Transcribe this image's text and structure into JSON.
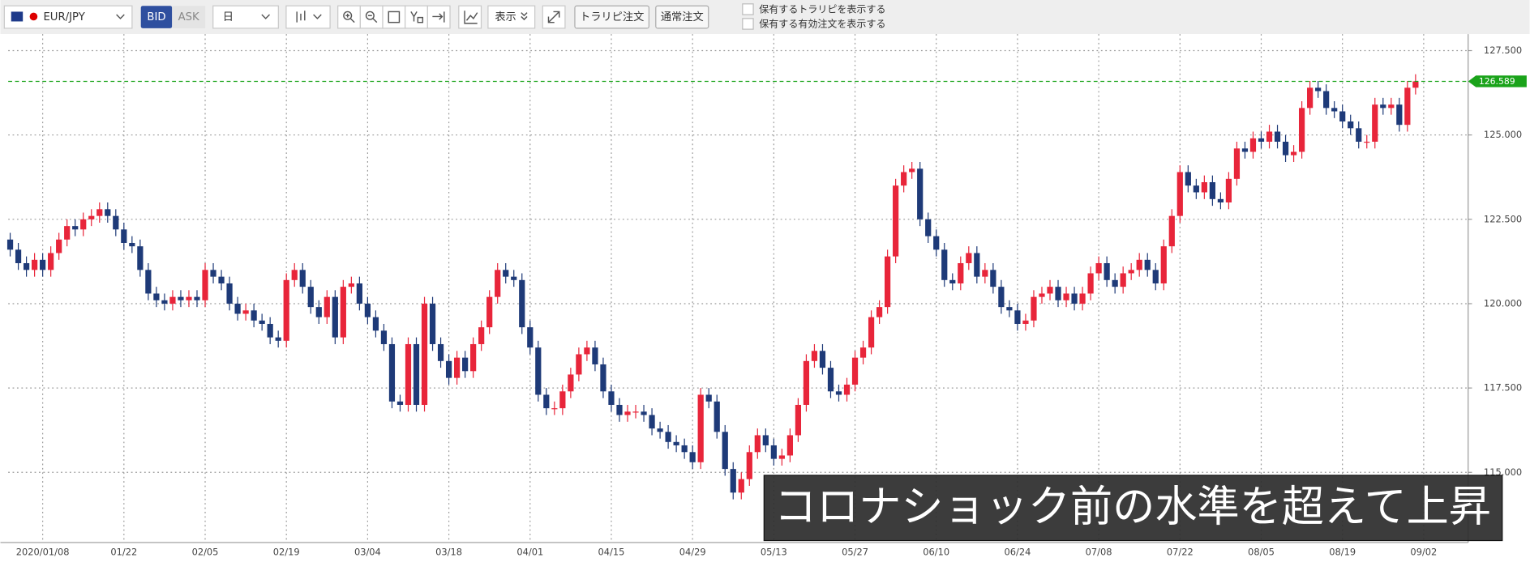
{
  "toolbar": {
    "symbol": "EUR/JPY",
    "bid": "BID",
    "ask": "ASK",
    "period": "日",
    "display": "表示",
    "buttons": [
      "トラリピ注文",
      "通常注文"
    ],
    "checkboxes": [
      "保有するトラリピを表示する",
      "保有する有効注文を表示する"
    ]
  },
  "annotation": "コロナショック前の水準を超えて上昇",
  "chart_data": {
    "type": "candlestick",
    "up_color": "#e8253a",
    "down_color": "#1e3a78",
    "last_price_color": "#1aa31a",
    "grid": true,
    "categories": [
      null,
      null,
      null,
      null,
      "2020/01/08",
      null,
      null,
      null,
      null,
      null,
      null,
      null,
      null,
      null,
      "01/22",
      null,
      null,
      null,
      null,
      null,
      null,
      null,
      null,
      null,
      "02/05",
      null,
      null,
      null,
      null,
      null,
      null,
      null,
      null,
      null,
      "02/19",
      null,
      null,
      null,
      null,
      null,
      null,
      null,
      null,
      null,
      "03/04",
      null,
      null,
      null,
      null,
      null,
      null,
      null,
      null,
      null,
      "03/18",
      null,
      null,
      null,
      null,
      null,
      null,
      null,
      null,
      null,
      "04/01",
      null,
      null,
      null,
      null,
      null,
      null,
      null,
      null,
      null,
      "04/15",
      null,
      null,
      null,
      null,
      null,
      null,
      null,
      null,
      null,
      "04/29",
      null,
      null,
      null,
      null,
      null,
      null,
      null,
      null,
      null,
      "05/13",
      null,
      null,
      null,
      null,
      null,
      null,
      null,
      null,
      null,
      "05/27",
      null,
      null,
      null,
      null,
      null,
      null,
      null,
      null,
      null,
      "06/10",
      null,
      null,
      null,
      null,
      null,
      null,
      null,
      null,
      null,
      "06/24",
      null,
      null,
      null,
      null,
      null,
      null,
      null,
      null,
      null,
      "07/08",
      null,
      null,
      null,
      null,
      null,
      null,
      null,
      null,
      null,
      "07/22",
      null,
      null,
      null,
      null,
      null,
      null,
      null,
      null,
      null,
      "08/05",
      null,
      null,
      null,
      null,
      null,
      null,
      null,
      null,
      null,
      "08/19",
      null,
      null,
      null,
      null,
      null,
      null,
      null,
      null,
      null,
      "09/02"
    ],
    "open": [
      121.9,
      121.6,
      121.2,
      121.0,
      121.3,
      121.0,
      121.5,
      121.9,
      122.3,
      122.2,
      122.5,
      122.6,
      122.8,
      122.6,
      122.2,
      121.8,
      121.7,
      121.0,
      120.3,
      120.1,
      120.0,
      120.2,
      120.1,
      120.2,
      120.1,
      121.0,
      120.8,
      120.6,
      120.0,
      119.7,
      119.8,
      119.5,
      119.4,
      119.0,
      118.9,
      120.7,
      121.0,
      120.5,
      119.9,
      119.6,
      120.2,
      119.0,
      120.5,
      120.6,
      120.0,
      119.6,
      119.2,
      118.8,
      117.1,
      117.0,
      118.8,
      117.0,
      120.0,
      118.8,
      118.3,
      117.8,
      118.4,
      118.0,
      118.8,
      119.3,
      120.2,
      121.0,
      120.8,
      120.7,
      119.3,
      118.7,
      117.3,
      116.9,
      116.9,
      117.4,
      117.9,
      118.5,
      118.7,
      118.2,
      117.4,
      117.0,
      116.7,
      116.8,
      116.8,
      116.7,
      116.3,
      116.2,
      115.9,
      115.8,
      115.6,
      115.3,
      117.3,
      117.1,
      116.2,
      115.1,
      114.4,
      114.8,
      115.6,
      116.1,
      115.8,
      115.4,
      115.5,
      116.1,
      117.0,
      118.3,
      118.6,
      118.1,
      117.4,
      117.3,
      117.6,
      118.4,
      118.7,
      119.6,
      119.9,
      121.4,
      123.5,
      123.9,
      124.0,
      122.5,
      122.0,
      121.6,
      120.7,
      120.6,
      121.2,
      121.5,
      120.8,
      121.0,
      120.5,
      119.9,
      119.8,
      119.4,
      119.5,
      120.2,
      120.3,
      120.5,
      120.1,
      120.3,
      120.0,
      120.3,
      120.9,
      121.2,
      120.7,
      120.5,
      120.9,
      121.0,
      121.3,
      121.0,
      120.6,
      121.7,
      122.6,
      123.9,
      123.5,
      123.3,
      123.6,
      123.1,
      123.0,
      123.7,
      124.6,
      124.5,
      124.9,
      124.8,
      125.1,
      124.8,
      124.4,
      124.5,
      125.8,
      126.4,
      126.3,
      125.8,
      125.7,
      125.4,
      125.2,
      124.8,
      124.8,
      125.9,
      125.8,
      125.9,
      125.3,
      126.4,
      null
    ],
    "high": [
      122.1,
      121.8,
      121.4,
      121.5,
      121.5,
      121.7,
      122.1,
      122.5,
      122.5,
      122.7,
      122.8,
      123.0,
      123.0,
      122.8,
      122.4,
      122.0,
      121.9,
      121.2,
      120.5,
      120.3,
      120.4,
      120.4,
      120.4,
      120.4,
      121.2,
      121.2,
      121.0,
      120.8,
      120.2,
      120.0,
      120.0,
      119.7,
      119.6,
      119.2,
      120.9,
      121.2,
      121.2,
      120.7,
      120.1,
      120.4,
      120.4,
      120.7,
      120.8,
      120.8,
      120.2,
      119.8,
      119.4,
      119.0,
      117.3,
      119.0,
      119.0,
      120.2,
      120.2,
      119.0,
      118.5,
      118.6,
      118.6,
      119.0,
      119.5,
      120.4,
      121.2,
      121.2,
      121.0,
      120.9,
      119.5,
      118.9,
      117.5,
      117.1,
      117.6,
      118.1,
      118.7,
      118.9,
      118.9,
      118.4,
      117.6,
      117.2,
      117.0,
      117.0,
      117.0,
      116.9,
      116.5,
      116.4,
      116.1,
      116.0,
      115.8,
      117.5,
      117.5,
      117.3,
      116.4,
      115.3,
      115.0,
      115.8,
      116.3,
      116.3,
      116.0,
      115.7,
      116.3,
      117.2,
      118.5,
      118.8,
      118.8,
      118.3,
      117.6,
      117.8,
      118.6,
      118.9,
      119.8,
      120.1,
      121.6,
      123.7,
      124.1,
      124.2,
      124.2,
      122.7,
      122.2,
      121.8,
      120.9,
      121.4,
      121.7,
      121.7,
      121.2,
      121.2,
      120.7,
      120.1,
      120.0,
      119.7,
      120.4,
      120.5,
      120.7,
      120.7,
      120.5,
      120.5,
      120.5,
      121.1,
      121.4,
      121.4,
      120.9,
      121.1,
      121.2,
      121.5,
      121.5,
      121.2,
      121.9,
      122.8,
      124.1,
      124.1,
      123.7,
      123.8,
      123.8,
      123.3,
      123.9,
      124.8,
      124.8,
      125.1,
      125.1,
      125.3,
      125.3,
      125.0,
      124.7,
      126.0,
      126.6,
      126.6,
      126.5,
      126.0,
      125.9,
      125.6,
      125.4,
      125.0,
      126.1,
      126.1,
      126.1,
      126.1,
      126.6,
      126.8,
      null
    ],
    "low": [
      121.4,
      121.0,
      120.8,
      120.8,
      120.8,
      120.8,
      121.3,
      121.7,
      122.0,
      122.0,
      122.3,
      122.4,
      122.4,
      122.0,
      121.6,
      121.5,
      120.8,
      120.1,
      119.9,
      119.8,
      119.8,
      119.9,
      119.9,
      119.9,
      119.9,
      120.6,
      120.4,
      119.8,
      119.5,
      119.5,
      119.3,
      119.2,
      118.8,
      118.7,
      118.7,
      120.5,
      120.3,
      119.7,
      119.4,
      119.4,
      118.8,
      118.8,
      120.3,
      119.8,
      119.4,
      119.0,
      118.6,
      116.9,
      116.8,
      116.8,
      116.8,
      116.8,
      118.6,
      118.1,
      117.6,
      117.6,
      117.8,
      117.8,
      118.6,
      119.1,
      120.0,
      120.6,
      120.5,
      119.1,
      118.5,
      117.1,
      116.7,
      116.7,
      116.7,
      117.2,
      117.7,
      118.3,
      118.0,
      117.2,
      116.8,
      116.5,
      116.5,
      116.6,
      116.5,
      116.1,
      116.0,
      115.7,
      115.6,
      115.4,
      115.1,
      115.1,
      116.9,
      116.0,
      114.9,
      114.2,
      114.2,
      114.6,
      115.4,
      115.6,
      115.2,
      115.2,
      115.3,
      115.9,
      116.8,
      118.1,
      117.9,
      117.2,
      117.1,
      117.1,
      117.4,
      118.2,
      118.5,
      119.4,
      119.7,
      121.2,
      123.3,
      123.7,
      122.3,
      121.8,
      121.4,
      120.5,
      120.4,
      120.4,
      121.0,
      120.6,
      120.6,
      120.3,
      119.7,
      119.6,
      119.2,
      119.2,
      119.3,
      120.0,
      120.1,
      119.9,
      119.9,
      119.8,
      119.8,
      120.1,
      120.7,
      120.5,
      120.3,
      120.3,
      120.7,
      120.8,
      120.8,
      120.4,
      120.4,
      121.5,
      122.4,
      123.3,
      123.1,
      123.1,
      122.9,
      122.8,
      122.8,
      123.5,
      124.3,
      124.3,
      124.6,
      124.6,
      124.6,
      124.2,
      124.2,
      124.3,
      125.6,
      126.1,
      125.6,
      125.5,
      125.2,
      125.0,
      124.6,
      124.6,
      124.6,
      125.6,
      125.6,
      125.1,
      125.1,
      126.2,
      null
    ],
    "close": [
      121.6,
      121.2,
      121.0,
      121.3,
      121.0,
      121.5,
      121.9,
      122.3,
      122.2,
      122.5,
      122.6,
      122.8,
      122.6,
      122.2,
      121.8,
      121.7,
      121.0,
      120.3,
      120.1,
      120.0,
      120.2,
      120.1,
      120.2,
      120.1,
      121.0,
      120.8,
      120.6,
      120.0,
      119.7,
      119.8,
      119.5,
      119.4,
      119.0,
      118.9,
      120.7,
      121.0,
      120.5,
      119.9,
      119.6,
      120.2,
      119.0,
      120.5,
      120.6,
      120.0,
      119.6,
      119.2,
      118.8,
      117.1,
      117.0,
      118.8,
      117.0,
      120.0,
      118.8,
      118.3,
      117.8,
      118.4,
      118.0,
      118.8,
      119.3,
      120.2,
      121.0,
      120.8,
      120.7,
      119.3,
      118.7,
      117.3,
      116.9,
      116.9,
      117.4,
      117.9,
      118.5,
      118.7,
      118.2,
      117.4,
      117.0,
      116.7,
      116.8,
      116.8,
      116.7,
      116.3,
      116.2,
      115.9,
      115.8,
      115.6,
      115.3,
      117.3,
      117.1,
      116.2,
      115.1,
      114.4,
      114.8,
      115.6,
      116.1,
      115.8,
      115.4,
      115.5,
      116.1,
      117.0,
      118.3,
      118.6,
      118.1,
      117.4,
      117.3,
      117.6,
      118.4,
      118.7,
      119.6,
      119.9,
      121.4,
      123.5,
      123.9,
      124.0,
      122.5,
      122.0,
      121.6,
      120.7,
      120.6,
      121.2,
      121.5,
      120.8,
      121.0,
      120.5,
      119.9,
      119.8,
      119.4,
      119.5,
      120.2,
      120.3,
      120.5,
      120.1,
      120.3,
      120.0,
      120.3,
      120.9,
      121.2,
      120.7,
      120.5,
      120.9,
      121.0,
      121.3,
      121.0,
      120.6,
      121.7,
      122.6,
      123.9,
      123.5,
      123.3,
      123.6,
      123.1,
      123.0,
      123.7,
      124.6,
      124.5,
      124.9,
      124.8,
      125.1,
      124.8,
      124.4,
      124.5,
      125.8,
      126.4,
      126.3,
      125.8,
      125.7,
      125.4,
      125.2,
      124.8,
      124.8,
      125.9,
      125.8,
      125.9,
      125.3,
      126.4,
      126.589,
      null
    ],
    "ylim": [
      112.92,
      127.99
    ],
    "yticks": [
      {
        "value": 115,
        "label": "115.000"
      },
      {
        "value": 117.5,
        "label": "117.500"
      },
      {
        "value": 120,
        "label": "120.000"
      },
      {
        "value": 122.5,
        "label": "122.500"
      },
      {
        "value": 125,
        "label": "125.000"
      },
      {
        "value": 127.5,
        "label": "127.500"
      }
    ]
  }
}
